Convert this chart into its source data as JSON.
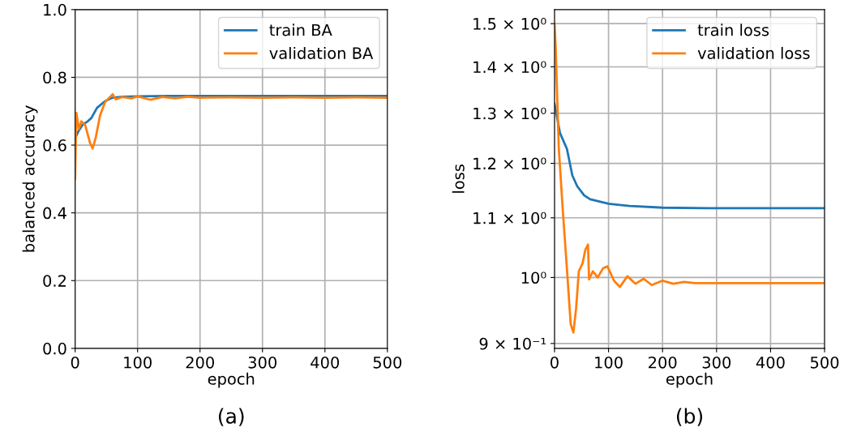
{
  "chart_data": [
    {
      "type": "line",
      "xlabel": "epoch",
      "ylabel": "balanced accuracy",
      "annotations": [
        "(a)"
      ],
      "xlim": [
        0,
        500
      ],
      "xticks": [
        0,
        100,
        200,
        300,
        400,
        500
      ],
      "ylim": [
        0,
        1
      ],
      "yticks": [
        {
          "value": 0,
          "label": "0.0"
        },
        0.2,
        0.4,
        0.6,
        0.8,
        {
          "value": 1,
          "label": "1.0"
        }
      ],
      "grid": true,
      "legend": "top right",
      "series": [
        {
          "name": "train BA",
          "color": "#1f77b4",
          "x": [
            0,
            5,
            12,
            20,
            26,
            35,
            48,
            60,
            75,
            100,
            150,
            200,
            250,
            300,
            350,
            400,
            450,
            500
          ],
          "values": [
            0.62,
            0.64,
            0.66,
            0.67,
            0.68,
            0.71,
            0.73,
            0.74,
            0.743,
            0.744,
            0.745,
            0.745,
            0.745,
            0.745,
            0.745,
            0.745,
            0.745,
            0.745
          ]
        },
        {
          "name": "validation BA",
          "color": "#ff7f0e",
          "x": [
            0,
            2,
            6,
            10,
            16,
            24,
            28,
            33,
            40,
            48,
            60,
            65,
            75,
            90,
            100,
            120,
            140,
            160,
            180,
            200,
            250,
            300,
            350,
            400,
            450,
            500
          ],
          "values": [
            0.5,
            0.695,
            0.647,
            0.67,
            0.66,
            0.606,
            0.59,
            0.622,
            0.688,
            0.727,
            0.75,
            0.735,
            0.742,
            0.738,
            0.744,
            0.734,
            0.742,
            0.738,
            0.743,
            0.74,
            0.741,
            0.74,
            0.741,
            0.74,
            0.741,
            0.74
          ]
        }
      ]
    },
    {
      "type": "line",
      "xlabel": "epoch",
      "ylabel": "loss",
      "annotations": [
        "(b)"
      ],
      "log": "y",
      "xlim": [
        0,
        500
      ],
      "xticks": [
        0,
        100,
        200,
        300,
        400,
        500
      ],
      "ylim": [
        0.893,
        1.534
      ],
      "yticks": [
        {
          "value": 0.9,
          "label": "9 × 10⁻¹"
        },
        {
          "value": 1.0,
          "label": "10⁰"
        },
        {
          "value": 1.1,
          "label": "1.1 × 10⁰"
        },
        {
          "value": 1.2,
          "label": "1.2 × 10⁰"
        },
        {
          "value": 1.3,
          "label": "1.3 × 10⁰"
        },
        {
          "value": 1.4,
          "label": "1.4 × 10⁰"
        },
        {
          "value": 1.5,
          "label": "1.5 × 10⁰"
        }
      ],
      "grid": true,
      "legend": "top right",
      "series": [
        {
          "name": "train loss",
          "color": "#1f77b4",
          "x": [
            0,
            10,
            23,
            33,
            42,
            55,
            66,
            100,
            139,
            201,
            284,
            350,
            420,
            500
          ],
          "values": [
            1.32,
            1.26,
            1.228,
            1.177,
            1.157,
            1.14,
            1.133,
            1.125,
            1.121,
            1.118,
            1.117,
            1.117,
            1.117,
            1.117
          ]
        },
        {
          "name": "validation loss",
          "color": "#ff7f0e",
          "x": [
            0,
            2,
            8,
            16,
            23,
            30,
            35,
            40,
            45,
            52,
            57,
            62,
            64,
            71,
            80,
            90,
            98,
            110,
            121,
            135,
            150,
            165,
            180,
            200,
            220,
            240,
            260,
            300,
            350,
            400,
            450,
            500
          ],
          "values": [
            1.5,
            1.45,
            1.228,
            1.104,
            1.014,
            0.928,
            0.916,
            0.952,
            1.01,
            1.023,
            1.045,
            1.054,
            0.997,
            1.01,
            1.0,
            1.015,
            1.018,
            0.995,
            0.985,
            1.002,
            0.99,
            0.998,
            0.988,
            0.995,
            0.99,
            0.993,
            0.991,
            0.991,
            0.991,
            0.991,
            0.991,
            0.991
          ]
        }
      ]
    }
  ]
}
